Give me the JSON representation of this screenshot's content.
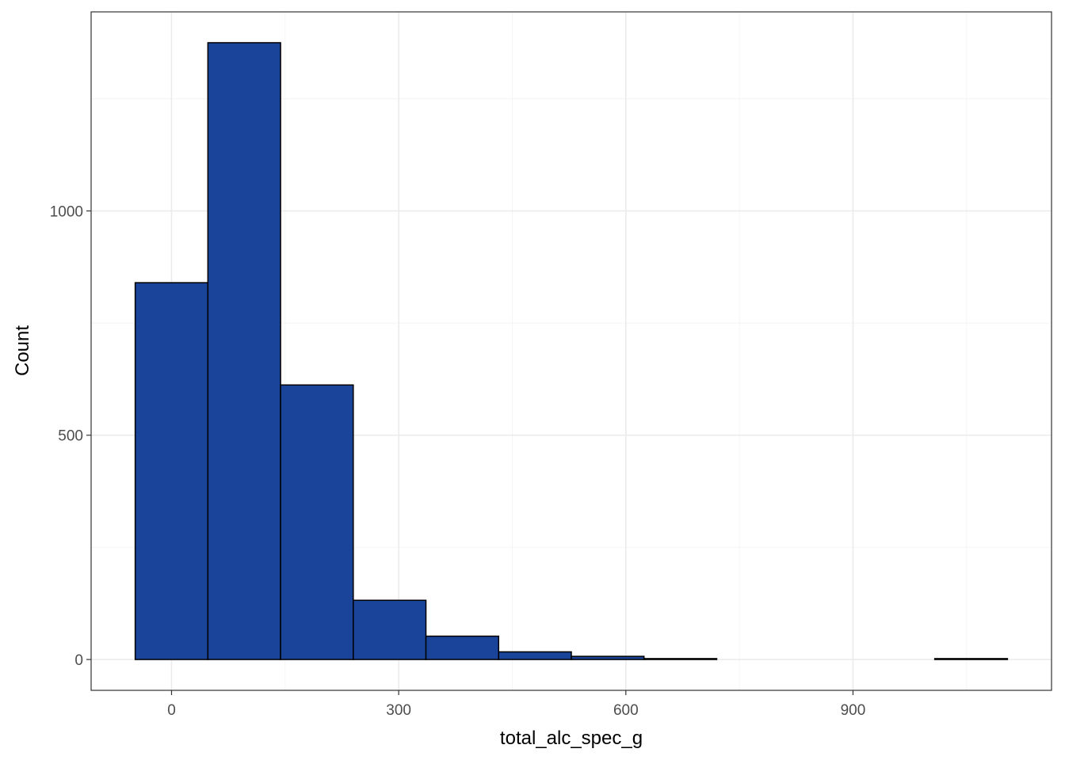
{
  "chart_data": {
    "type": "bar",
    "subtype": "histogram",
    "title": "",
    "xlabel": "total_alc_spec_g",
    "ylabel": "Count",
    "bins": [
      {
        "x0": -48,
        "x1": 48,
        "count": 840
      },
      {
        "x0": 48,
        "x1": 144,
        "count": 1375
      },
      {
        "x0": 144,
        "x1": 240,
        "count": 612
      },
      {
        "x0": 240,
        "x1": 336,
        "count": 132
      },
      {
        "x0": 336,
        "x1": 432,
        "count": 52
      },
      {
        "x0": 432,
        "x1": 528,
        "count": 17
      },
      {
        "x0": 528,
        "x1": 624,
        "count": 7
      },
      {
        "x0": 624,
        "x1": 720,
        "count": 2
      },
      {
        "x0": 720,
        "x1": 816,
        "count": 0
      },
      {
        "x0": 816,
        "x1": 912,
        "count": 0
      },
      {
        "x0": 912,
        "x1": 1008,
        "count": 0
      },
      {
        "x0": 1008,
        "x1": 1104,
        "count": 2
      }
    ],
    "xlim": [
      -106.2,
      1162.2
    ],
    "ylim": [
      -68.75,
      1443.75
    ],
    "x_ticks": [
      0,
      300,
      600,
      900
    ],
    "x_tick_labels": [
      "0",
      "300",
      "600",
      "900"
    ],
    "x_minor_grid": [
      150,
      450,
      750,
      1050
    ],
    "y_ticks": [
      0,
      500,
      1000
    ],
    "y_tick_labels": [
      "0",
      "500",
      "1000"
    ],
    "y_minor_grid": [
      250,
      750,
      1250
    ],
    "grid": true,
    "colors": {
      "fill": "#1A4499",
      "outline": "#000000",
      "grid_major": "#EBEBEB",
      "grid_minor": "#F4F4F4",
      "panel_border": "#333333",
      "tick_label": "#4D4D4D"
    }
  }
}
